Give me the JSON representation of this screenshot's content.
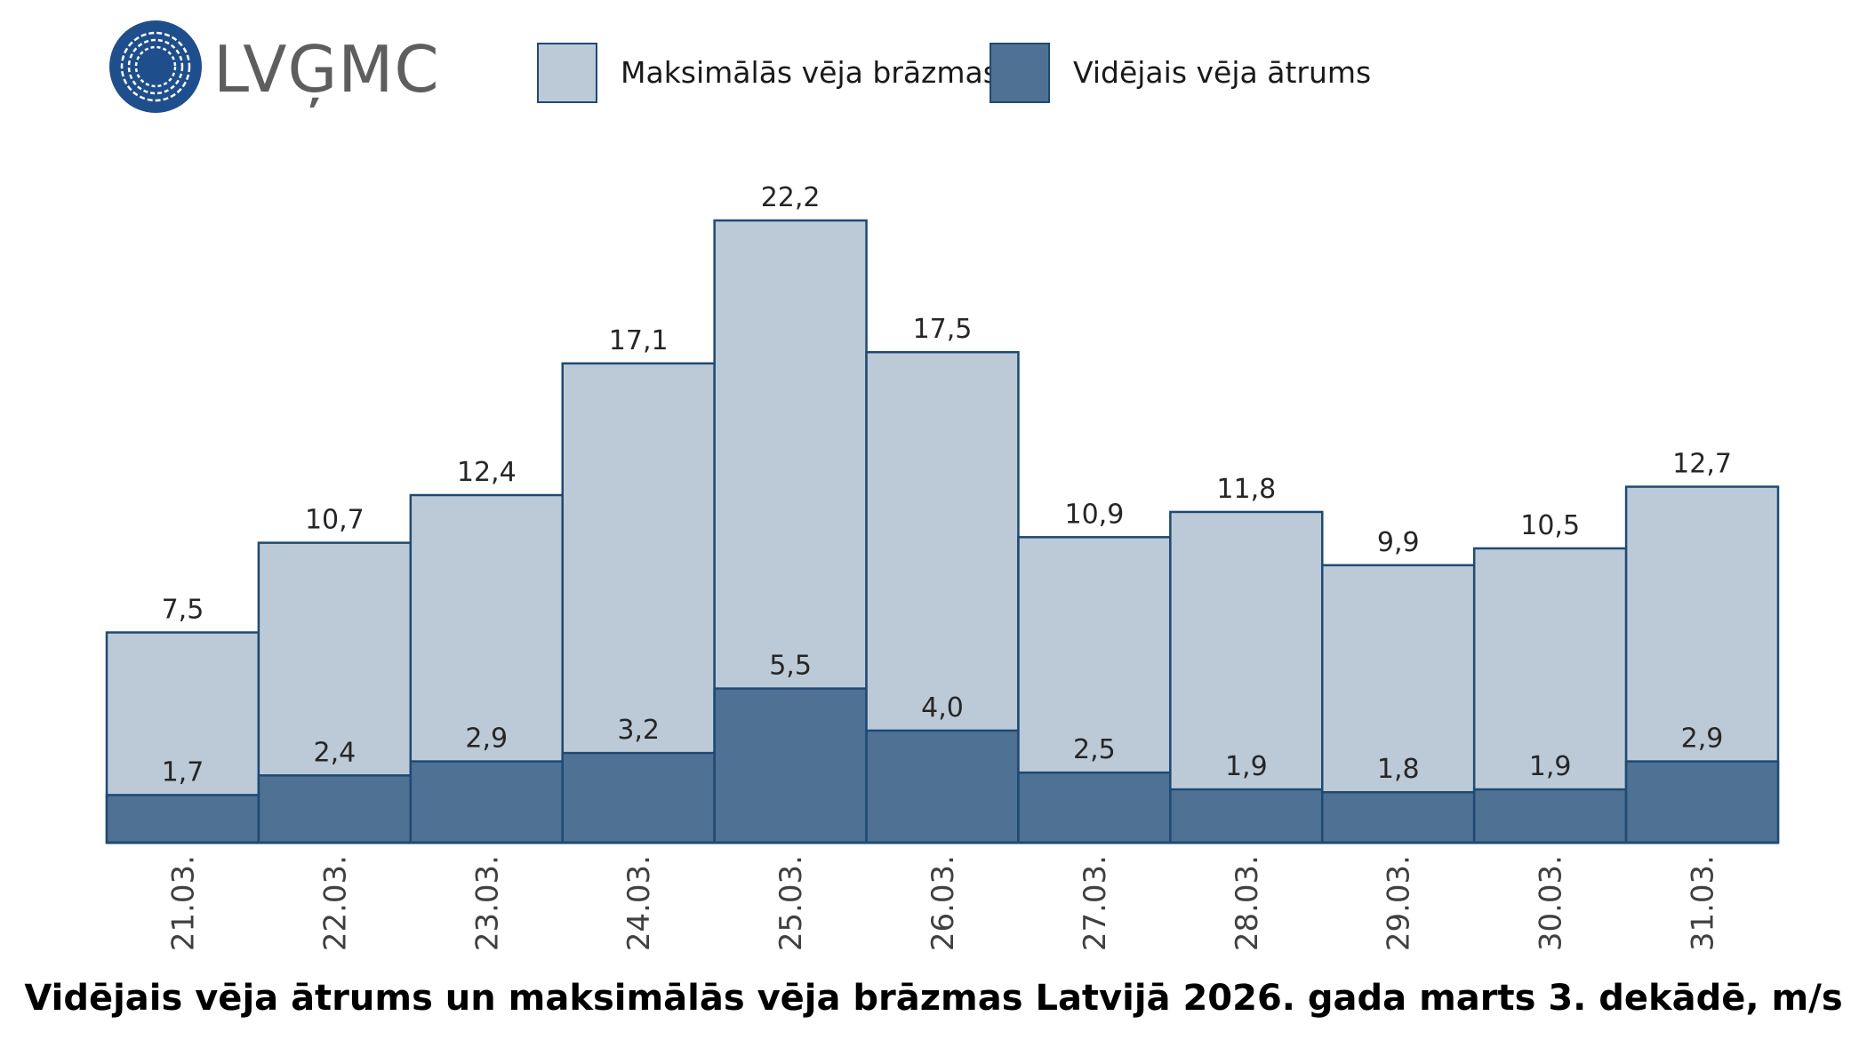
{
  "logo": {
    "text": "LVĢMC",
    "color": "#1f4e8c"
  },
  "legend": [
    {
      "label": "Maksimālās vēja brāzmas",
      "color": "#bccad8"
    },
    {
      "label": "Vidējais vēja ātrums",
      "color": "#4f7194"
    }
  ],
  "chart_data": {
    "type": "bar",
    "title": "Vidējais vēja ātrums un maksimālās vēja brāzmas Latvijā 2026. gada marts 3. dekādē, m/s",
    "xlabel": "",
    "ylabel": "",
    "ylim": [
      0,
      22.2
    ],
    "grid": false,
    "legend_position": "top",
    "categories": [
      "21.03.",
      "22.03.",
      "23.03.",
      "24.03.",
      "25.03.",
      "26.03.",
      "27.03.",
      "28.03.",
      "29.03.",
      "30.03.",
      "31.03."
    ],
    "series": [
      {
        "name": "Maksimālās vēja brāzmas",
        "values": [
          7.5,
          10.7,
          12.4,
          17.1,
          22.2,
          17.5,
          10.9,
          11.8,
          9.9,
          10.5,
          12.7
        ],
        "labels": [
          "7,5",
          "10,7",
          "12,4",
          "17,1",
          "22,2",
          "17,5",
          "10,9",
          "11,8",
          "9,9",
          "10,5",
          "12,7"
        ],
        "color": "#bccad8"
      },
      {
        "name": "Vidējais vēja ātrums",
        "values": [
          1.7,
          2.4,
          2.9,
          3.2,
          5.5,
          4.0,
          2.5,
          1.9,
          1.8,
          1.9,
          2.9
        ],
        "labels": [
          "1,7",
          "2,4",
          "2,9",
          "3,2",
          "5,5",
          "4,0",
          "2,5",
          "1,9",
          "1,8",
          "1,9",
          "2,9"
        ],
        "color": "#4f7194"
      }
    ],
    "bar_border_color": "#1f4a73"
  }
}
